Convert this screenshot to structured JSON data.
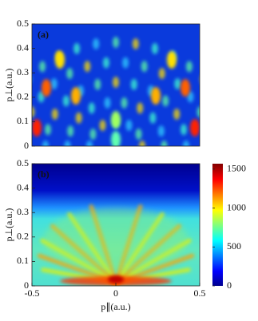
{
  "chart_data": [
    {
      "type": "heatmap",
      "panel_label": "(a)",
      "ylabel": "p⊥(a.u.)",
      "xlim": [
        -0.5,
        0.5
      ],
      "ylim": [
        0,
        0.5
      ],
      "yticks": [
        0,
        0.1,
        0.2,
        0.3,
        0.4,
        0.5
      ]
    },
    {
      "type": "heatmap",
      "panel_label": "(b)",
      "ylabel": "p⊥(a.u.)",
      "xlabel": "p∥(a.u.)",
      "xlim": [
        -0.5,
        0.5
      ],
      "xticks": [
        -0.5,
        0,
        0.5
      ],
      "ylim": [
        0,
        0.5
      ],
      "yticks": [
        0,
        0.1,
        0.2,
        0.3,
        0.4,
        0.5
      ],
      "colorbar": {
        "lim": [
          0,
          1570
        ],
        "ticks": [
          0,
          500,
          1000,
          1500
        ]
      }
    }
  ]
}
